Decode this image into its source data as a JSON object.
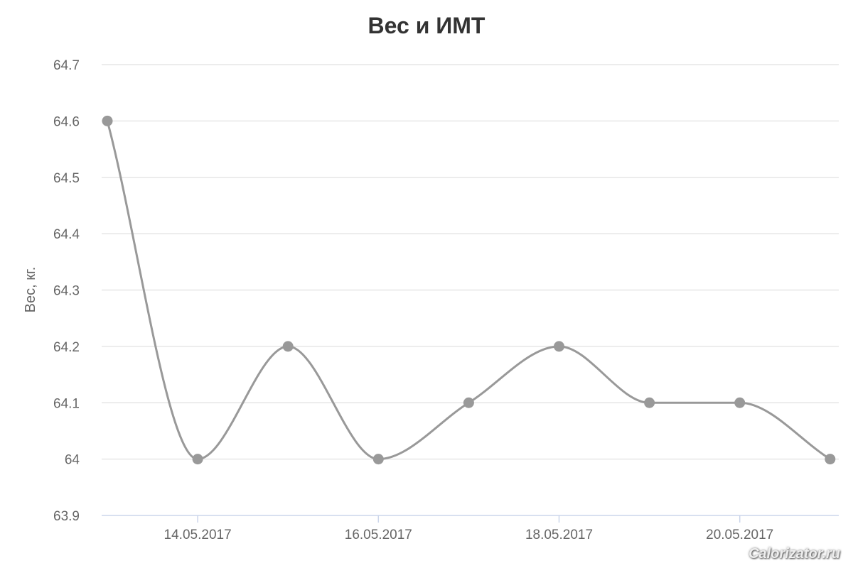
{
  "chart_data": {
    "type": "line",
    "title": "Вес и ИМТ",
    "ylabel": "Вес, кг.",
    "xlabel": "",
    "x": [
      "13.05.2017",
      "14.05.2017",
      "15.05.2017",
      "16.05.2017",
      "17.05.2017",
      "18.05.2017",
      "19.05.2017",
      "20.05.2017",
      "21.05.2017"
    ],
    "x_tick_labels": [
      "14.05.2017",
      "16.05.2017",
      "18.05.2017",
      "20.05.2017"
    ],
    "series": [
      {
        "values": [
          64.6,
          64.0,
          64.2,
          64.0,
          64.1,
          64.2,
          64.1,
          64.1,
          64.0
        ],
        "color": "#999999"
      }
    ],
    "y_tick_labels": [
      "63.9",
      "64",
      "64.1",
      "64.2",
      "64.3",
      "64.4",
      "64.5",
      "64.6",
      "64.7"
    ],
    "ylim": [
      63.9,
      64.7
    ],
    "grid": true,
    "legend": "none",
    "smooth": true
  },
  "watermark": "Calorizator.ru"
}
